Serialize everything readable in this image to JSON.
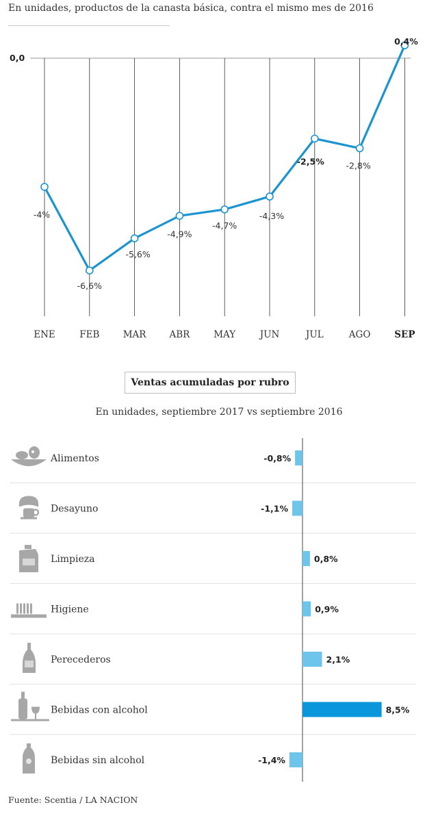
{
  "header": {
    "subtitle": "En unidades, productos de la canasta básica, contra el mismo mes de 2016"
  },
  "chart_data": [
    {
      "type": "line",
      "title": "",
      "subtitle": "En unidades, productos de la canasta básica, contra el mismo mes de 2016",
      "xlabel": "",
      "ylabel": "",
      "zero_tick_label": "0,0",
      "categories": [
        "ENE",
        "FEB",
        "MAR",
        "ABR",
        "MAY",
        "JUN",
        "JUL",
        "AGO",
        "SEP"
      ],
      "values": [
        -4.0,
        -6.6,
        -5.6,
        -4.9,
        -4.7,
        -4.3,
        -2.5,
        -2.8,
        0.4
      ],
      "labels": [
        "-4%",
        "-6,6%",
        "-5,6%",
        "-4,9%",
        "-4,7%",
        "-4,3%",
        "-2,5%",
        "-2,8%",
        "0,4%"
      ],
      "bold_labels": [
        "JUL",
        "SEP"
      ],
      "bold_categories": [
        "SEP"
      ],
      "ylim": [
        -7.4,
        0.6
      ],
      "grid": false,
      "line_color": "#1a93d1"
    },
    {
      "type": "bar",
      "orientation": "horizontal",
      "title": "Ventas acumuladas por rubro",
      "subtitle": "En unidades, septiembre 2017 vs septiembre 2016",
      "categories": [
        "Alimentos",
        "Desayuno",
        "Limpieza",
        "Higiene",
        "Perecederos",
        "Bebidas con alcohol",
        "Bebidas sin alcohol"
      ],
      "values": [
        -0.8,
        -1.1,
        0.8,
        0.9,
        2.1,
        8.5,
        -1.4
      ],
      "labels": [
        "-0,8%",
        "-1,1%",
        "0,8%",
        "0,9%",
        "2,1%",
        "8,5%",
        "-1,4%"
      ],
      "icons": [
        "food-plate-icon",
        "croissant-coffee-icon",
        "detergent-bottle-icon",
        "toothbrush-icon",
        "bottle-icon",
        "wine-bottle-glass-icon",
        "soda-bottle-icon"
      ],
      "bar_color": "#6ec5ec",
      "highlight_color": "#0a96db",
      "xlim": [
        -1.4,
        8.5
      ]
    }
  ],
  "section": {
    "title": "Ventas acumuladas por rubro",
    "subtitle": "En unidades, septiembre 2017 vs septiembre 2016"
  },
  "footer": {
    "source": "Fuente: Scentia / LA NACION"
  }
}
